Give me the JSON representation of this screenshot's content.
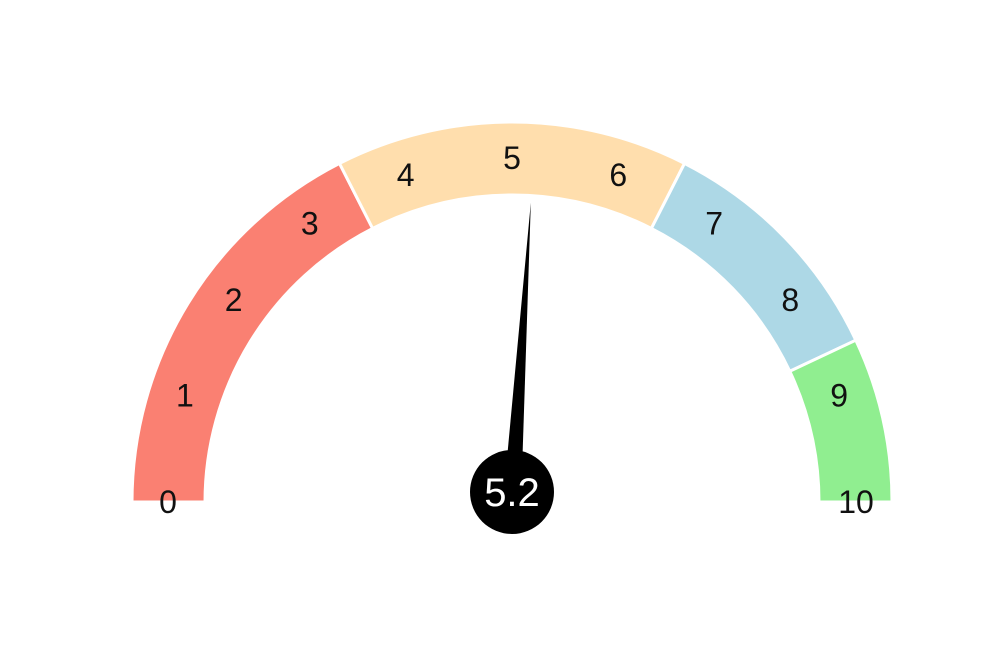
{
  "chart_data": {
    "type": "gauge",
    "min": 0,
    "max": 10,
    "value": 5.2,
    "value_label": "5.2",
    "ticks": [
      {
        "value": 0,
        "label": "0"
      },
      {
        "value": 1,
        "label": "1"
      },
      {
        "value": 2,
        "label": "2"
      },
      {
        "value": 3,
        "label": "3"
      },
      {
        "value": 4,
        "label": "4"
      },
      {
        "value": 5,
        "label": "5"
      },
      {
        "value": 6,
        "label": "6"
      },
      {
        "value": 7,
        "label": "7"
      },
      {
        "value": 8,
        "label": "8"
      },
      {
        "value": 9,
        "label": "9"
      },
      {
        "value": 10,
        "label": "10"
      }
    ],
    "bands": [
      {
        "from": 0,
        "to": 3.5,
        "color": "#fa8072"
      },
      {
        "from": 3.5,
        "to": 6.5,
        "color": "#ffdead"
      },
      {
        "from": 6.5,
        "to": 8.6,
        "color": "#add8e6"
      },
      {
        "from": 8.6,
        "to": 10,
        "color": "#90ee90"
      }
    ],
    "needle_color": "#000000",
    "hub_color": "#000000"
  }
}
